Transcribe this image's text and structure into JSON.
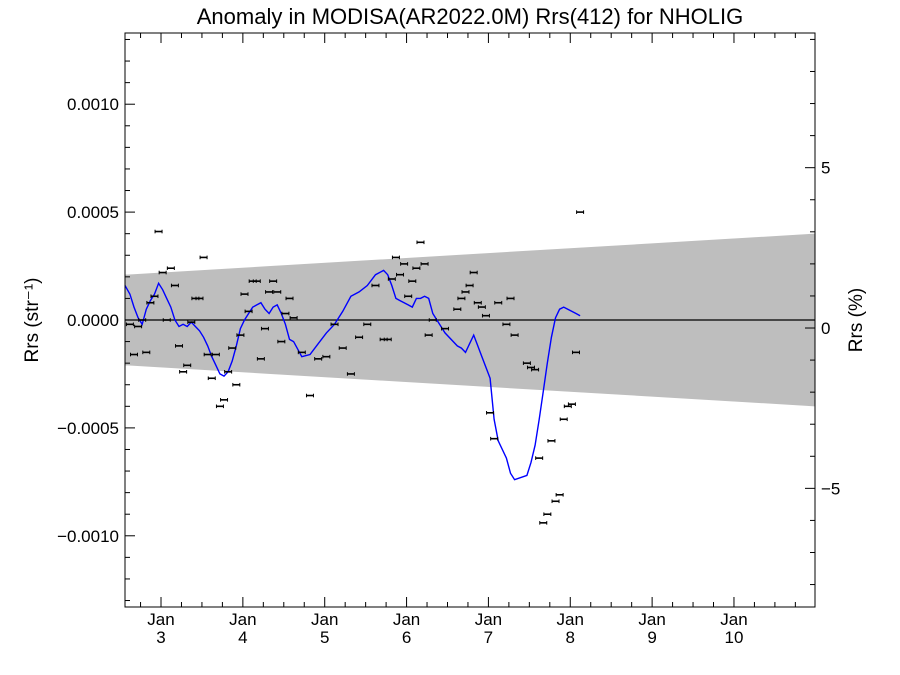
{
  "chart_data": {
    "type": "scatter",
    "title": "Anomaly in MODISA(AR2022.0M) Rrs(412) for NHOLIG",
    "ylabel_left": "Rrs (str⁻¹)",
    "ylabel_right": "Rrs (%)",
    "xlabel": "",
    "xlim": [
      2.56,
      10.99
    ],
    "ylim": [
      -0.00133,
      0.00133
    ],
    "ylim_right": [
      -8.7,
      9.2
    ],
    "x_ticks": [
      {
        "value": 3.0,
        "top": "Jan",
        "bottom": "3"
      },
      {
        "value": 4.0,
        "top": "Jan",
        "bottom": "4"
      },
      {
        "value": 5.0,
        "top": "Jan",
        "bottom": "5"
      },
      {
        "value": 6.0,
        "top": "Jan",
        "bottom": "6"
      },
      {
        "value": 7.0,
        "top": "Jan",
        "bottom": "7"
      },
      {
        "value": 8.0,
        "top": "Jan",
        "bottom": "8"
      },
      {
        "value": 9.0,
        "top": "Jan",
        "bottom": "9"
      },
      {
        "value": 10.0,
        "top": "Jan",
        "bottom": "10"
      }
    ],
    "y_ticks_left": [
      {
        "value": 0.001,
        "label": "0.0010"
      },
      {
        "value": 0.0005,
        "label": "0.0005"
      },
      {
        "value": 0.0,
        "label": "0.0000"
      },
      {
        "value": -0.0005,
        "label": "−0.0005"
      },
      {
        "value": -0.001,
        "label": "−0.0010"
      }
    ],
    "y_ticks_right": [
      {
        "value": 5,
        "label": "5"
      },
      {
        "value": 0,
        "label": "0"
      },
      {
        "value": -5,
        "label": "−5"
      }
    ],
    "band": {
      "x": [
        2.56,
        10.99
      ],
      "upper": [
        0.00021,
        0.0004
      ],
      "lower": [
        -0.00021,
        -0.0004
      ],
      "color": "#bebebe"
    },
    "zero_line": 0.0,
    "scatter_points": [
      {
        "x": 2.62,
        "y": -2e-05
      },
      {
        "x": 2.67,
        "y": -0.00016
      },
      {
        "x": 2.72,
        "y": -3e-05
      },
      {
        "x": 2.77,
        "y": 0.0
      },
      {
        "x": 2.82,
        "y": -0.00015
      },
      {
        "x": 2.87,
        "y": 8e-05
      },
      {
        "x": 2.92,
        "y": 0.00011
      },
      {
        "x": 2.97,
        "y": 0.00041
      },
      {
        "x": 3.02,
        "y": 0.00022
      },
      {
        "x": 3.07,
        "y": 0.0
      },
      {
        "x": 3.12,
        "y": 0.00024
      },
      {
        "x": 3.17,
        "y": 0.00016
      },
      {
        "x": 3.22,
        "y": -0.00012
      },
      {
        "x": 3.27,
        "y": -0.00024
      },
      {
        "x": 3.32,
        "y": -0.00021
      },
      {
        "x": 3.37,
        "y": -1e-05
      },
      {
        "x": 3.42,
        "y": 0.0001
      },
      {
        "x": 3.47,
        "y": 0.0001
      },
      {
        "x": 3.52,
        "y": 0.00029
      },
      {
        "x": 3.57,
        "y": -0.00016
      },
      {
        "x": 3.62,
        "y": -0.00027
      },
      {
        "x": 3.67,
        "y": -0.00016
      },
      {
        "x": 3.72,
        "y": -0.0004
      },
      {
        "x": 3.77,
        "y": -0.00037
      },
      {
        "x": 3.82,
        "y": -0.00024
      },
      {
        "x": 3.87,
        "y": -0.00013
      },
      {
        "x": 3.92,
        "y": -0.0003
      },
      {
        "x": 3.97,
        "y": -7e-05
      },
      {
        "x": 4.02,
        "y": 0.00012
      },
      {
        "x": 4.07,
        "y": 4e-05
      },
      {
        "x": 4.12,
        "y": 0.00018
      },
      {
        "x": 4.17,
        "y": 0.00018
      },
      {
        "x": 4.22,
        "y": -0.00018
      },
      {
        "x": 4.27,
        "y": -4e-05
      },
      {
        "x": 4.32,
        "y": 0.00013
      },
      {
        "x": 4.37,
        "y": 0.00018
      },
      {
        "x": 4.42,
        "y": 0.00013
      },
      {
        "x": 4.47,
        "y": -0.0001
      },
      {
        "x": 4.52,
        "y": 3e-05
      },
      {
        "x": 4.57,
        "y": 0.0001
      },
      {
        "x": 4.62,
        "y": 1e-05
      },
      {
        "x": 4.72,
        "y": -0.00015
      },
      {
        "x": 4.82,
        "y": -0.00035
      },
      {
        "x": 4.92,
        "y": -0.00018
      },
      {
        "x": 5.02,
        "y": -0.00017
      },
      {
        "x": 5.12,
        "y": -2e-05
      },
      {
        "x": 5.22,
        "y": -0.00013
      },
      {
        "x": 5.32,
        "y": -0.00025
      },
      {
        "x": 5.42,
        "y": -8e-05
      },
      {
        "x": 5.52,
        "y": -2e-05
      },
      {
        "x": 5.62,
        "y": 0.00016
      },
      {
        "x": 5.72,
        "y": -9e-05
      },
      {
        "x": 5.77,
        "y": -9e-05
      },
      {
        "x": 5.82,
        "y": 0.00019
      },
      {
        "x": 5.87,
        "y": 0.00029
      },
      {
        "x": 5.92,
        "y": 0.00021
      },
      {
        "x": 5.97,
        "y": 0.00026
      },
      {
        "x": 6.02,
        "y": 0.00011
      },
      {
        "x": 6.07,
        "y": 0.00018
      },
      {
        "x": 6.12,
        "y": 0.00024
      },
      {
        "x": 6.17,
        "y": 0.00036
      },
      {
        "x": 6.22,
        "y": 0.00026
      },
      {
        "x": 6.27,
        "y": -7e-05
      },
      {
        "x": 6.32,
        "y": 0.0
      },
      {
        "x": 6.47,
        "y": -4e-05
      },
      {
        "x": 6.62,
        "y": 5e-05
      },
      {
        "x": 6.67,
        "y": 0.0001
      },
      {
        "x": 6.72,
        "y": 0.00013
      },
      {
        "x": 6.77,
        "y": 0.00016
      },
      {
        "x": 6.82,
        "y": 0.00022
      },
      {
        "x": 6.87,
        "y": 8e-05
      },
      {
        "x": 6.92,
        "y": 6e-05
      },
      {
        "x": 6.97,
        "y": 2e-05
      },
      {
        "x": 7.02,
        "y": -0.00043
      },
      {
        "x": 7.07,
        "y": -0.00055
      },
      {
        "x": 7.12,
        "y": 8e-05
      },
      {
        "x": 7.22,
        "y": -2e-05
      },
      {
        "x": 7.27,
        "y": 0.0001
      },
      {
        "x": 7.32,
        "y": -7e-05
      },
      {
        "x": 7.47,
        "y": -0.0002
      },
      {
        "x": 7.52,
        "y": -0.00022
      },
      {
        "x": 7.57,
        "y": -0.00023
      },
      {
        "x": 7.62,
        "y": -0.00064
      },
      {
        "x": 7.67,
        "y": -0.00094
      },
      {
        "x": 7.72,
        "y": -0.0009
      },
      {
        "x": 7.77,
        "y": -0.00056
      },
      {
        "x": 7.82,
        "y": -0.00084
      },
      {
        "x": 7.87,
        "y": -0.00081
      },
      {
        "x": 7.92,
        "y": -0.00046
      },
      {
        "x": 7.97,
        "y": -0.0004
      },
      {
        "x": 8.02,
        "y": -0.00039
      },
      {
        "x": 8.07,
        "y": -0.00015
      },
      {
        "x": 8.12,
        "y": 0.0005
      }
    ],
    "line_series": {
      "color": "#0000ff",
      "x": [
        2.56,
        2.62,
        2.67,
        2.72,
        2.77,
        2.82,
        2.87,
        2.92,
        2.97,
        3.02,
        3.07,
        3.12,
        3.17,
        3.22,
        3.27,
        3.32,
        3.37,
        3.42,
        3.47,
        3.52,
        3.57,
        3.62,
        3.67,
        3.72,
        3.77,
        3.82,
        3.87,
        3.92,
        3.97,
        4.02,
        4.07,
        4.12,
        4.17,
        4.22,
        4.27,
        4.32,
        4.37,
        4.42,
        4.47,
        4.52,
        4.57,
        4.62,
        4.72,
        4.82,
        4.92,
        5.02,
        5.12,
        5.22,
        5.32,
        5.42,
        5.52,
        5.62,
        5.72,
        5.77,
        5.82,
        5.87,
        5.92,
        5.97,
        6.02,
        6.07,
        6.12,
        6.17,
        6.22,
        6.27,
        6.32,
        6.47,
        6.62,
        6.67,
        6.72,
        6.77,
        6.82,
        6.87,
        6.92,
        6.97,
        7.02,
        7.07,
        7.12,
        7.22,
        7.27,
        7.32,
        7.47,
        7.52,
        7.57,
        7.62,
        7.67,
        7.72,
        7.77,
        7.82,
        7.87,
        7.92,
        7.97,
        8.02,
        8.07,
        8.12
      ],
      "y": [
        0.00016,
        0.00012,
        6e-05,
        1e-05,
        -2e-05,
        5e-05,
        9e-05,
        0.00012,
        0.00017,
        0.00014,
        0.0001,
        6e-05,
        0.0,
        -3e-05,
        -2e-05,
        -3e-05,
        -1e-05,
        -3e-05,
        -5e-05,
        -8e-05,
        -0.00012,
        -0.00017,
        -0.00021,
        -0.00025,
        -0.00026,
        -0.00024,
        -0.00019,
        -0.00012,
        -4e-05,
        0.0,
        3e-05,
        6e-05,
        7e-05,
        8e-05,
        5e-05,
        3e-05,
        6e-05,
        7e-05,
        3e-05,
        -2e-05,
        -9e-05,
        -0.0001,
        -0.00017,
        -0.00016,
        -0.00011,
        -6e-05,
        -2e-05,
        4e-05,
        0.00011,
        0.00013,
        0.00016,
        0.00021,
        0.00023,
        0.00021,
        0.00016,
        0.0001,
        9e-05,
        8e-05,
        7e-05,
        6e-05,
        0.0001,
        0.0001,
        0.00011,
        0.0001,
        3e-05,
        -6e-05,
        -0.00012,
        -0.00013,
        -0.00015,
        -0.00011,
        -7e-05,
        -0.00012,
        -0.00017,
        -0.00022,
        -0.00027,
        -0.00046,
        -0.00056,
        -0.00064,
        -0.00071,
        -0.00074,
        -0.00072,
        -0.00066,
        -0.00058,
        -0.00046,
        -0.00033,
        -0.0002,
        -8e-05,
        1e-05,
        5e-05,
        6e-05,
        5e-05,
        4e-05,
        3e-05,
        2e-05
      ]
    },
    "grid": false,
    "legend": "none"
  }
}
